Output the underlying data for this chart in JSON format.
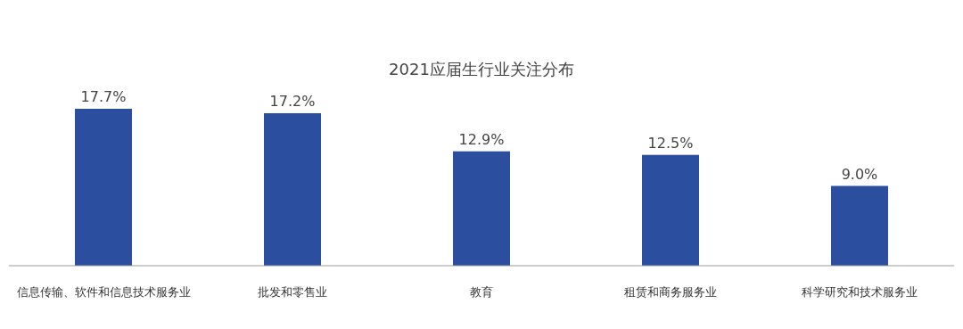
{
  "chart_data": {
    "type": "bar",
    "title": "2021应届生行业关注分布",
    "categories": [
      "信息传输、软件和信息技术服务业",
      "批发和零售业",
      "教育",
      "租赁和商务服务业",
      "科学研究和技术服务业"
    ],
    "values": [
      17.7,
      17.2,
      12.9,
      12.5,
      9.0
    ],
    "value_labels": [
      "17.7%",
      "17.2%",
      "12.9%",
      "12.5%",
      "9.0%"
    ],
    "color": "#2b4f9e"
  }
}
